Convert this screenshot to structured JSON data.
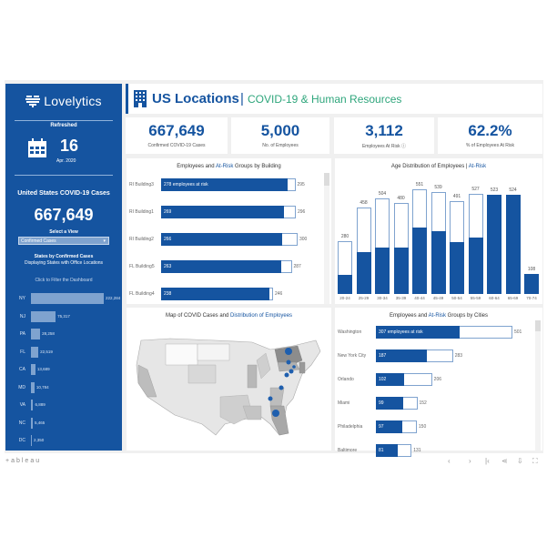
{
  "sidebar": {
    "brand": "Lovelytics",
    "refreshed_label": "Refreshed",
    "refreshed_day": "16",
    "refreshed_month": "Apr. 2020",
    "us_cases_title": "United States COVID-19 Cases",
    "us_cases_value": "667,649",
    "select_view_label": "Select a View",
    "select_view_value": "Confirmed Cases",
    "states_title_1": "States by Confirmed Cases",
    "states_title_2": "Displaying States with Office Locations",
    "click_filter": "Click to Filter the Dashboard",
    "states": [
      {
        "code": "NY",
        "value": 222284,
        "label": "222,284"
      },
      {
        "code": "NJ",
        "value": 75317,
        "label": "75,317"
      },
      {
        "code": "PA",
        "value": 28258,
        "label": "28,258"
      },
      {
        "code": "FL",
        "value": 22519,
        "label": "22,519"
      },
      {
        "code": "CA",
        "value": 13689,
        "label": "13,689"
      },
      {
        "code": "MD",
        "value": 10784,
        "label": "10,784"
      },
      {
        "code": "VA",
        "value": 6889,
        "label": "6,889"
      },
      {
        "code": "NC",
        "value": 5465,
        "label": "5,465"
      },
      {
        "code": "DC",
        "value": 2350,
        "label": "2,350"
      }
    ]
  },
  "header": {
    "title": "US Locations",
    "separator": "|",
    "subtitle": "COVID-19 & Human Resources"
  },
  "kpis": [
    {
      "value": "667,649",
      "label": "Confirmed COVID-19 Cases"
    },
    {
      "value": "5,000",
      "label": "No. of Employees"
    },
    {
      "value": "3,112",
      "label": "Employees At Risk ⓘ"
    },
    {
      "value": "62.2%",
      "label": "% of Employees At Risk"
    }
  ],
  "chart_data": [
    {
      "type": "bar",
      "orientation": "horizontal",
      "title": "Employees and At-Risk Groups by Building",
      "title_highlight": "At-Risk",
      "categories": [
        "RI Building3",
        "RI Building1",
        "RI Building2",
        "FL Building5",
        "FL Building4"
      ],
      "series": [
        {
          "name": "At-Risk",
          "values": [
            278,
            269,
            266,
            263,
            238
          ]
        },
        {
          "name": "Employees",
          "values": [
            295,
            296,
            300,
            287,
            246
          ]
        }
      ],
      "first_label_suffix": " employees at risk",
      "total_labels": [
        "295",
        "296",
        "300",
        "287",
        "246"
      ]
    },
    {
      "type": "bar",
      "orientation": "vertical",
      "title": "Age Distribution of Employees",
      "title_highlight": "At-Risk",
      "categories": [
        "20-24",
        "25-29",
        "30-34",
        "35-39",
        "40-44",
        "45-49",
        "50-54",
        "55-59",
        "60-64",
        "65-69",
        "70-74"
      ],
      "series": [
        {
          "name": "Employees",
          "values": [
            280,
            458,
            504,
            480,
            551,
            539,
            491,
            527,
            523,
            524,
            108
          ]
        },
        {
          "name": "At-Risk",
          "values": [
            100,
            220,
            245,
            245,
            352,
            330,
            272,
            300,
            523,
            524,
            108
          ]
        }
      ],
      "ylim": [
        0,
        600
      ]
    },
    {
      "type": "bar",
      "orientation": "horizontal",
      "title": "Employees and At-Risk Groups by Cities",
      "title_highlight": "At-Risk",
      "categories": [
        "Washington",
        "New York City",
        "Orlando",
        "Miami",
        "Philadelphia",
        "Baltimore"
      ],
      "series": [
        {
          "name": "At-Risk",
          "values": [
            307,
            187,
            102,
            99,
            97,
            81
          ]
        },
        {
          "name": "Employees",
          "values": [
            501,
            283,
            206,
            152,
            150,
            131
          ]
        }
      ],
      "first_label_suffix": " employees at risk",
      "total_labels": [
        "501",
        "283",
        "206",
        "152",
        "150",
        "131"
      ]
    }
  ],
  "map": {
    "title_prefix": "Map of COVID Cases and ",
    "title_highlight": "Distribution of Employees"
  },
  "footer": {
    "brand": "+ableau",
    "buttons": [
      "undo",
      "redo",
      "revert",
      "share",
      "download",
      "fullscreen"
    ]
  },
  "colors": {
    "brand_blue": "#1554a0",
    "light_blue": "#7fa3cf",
    "accent_green": "#2fa67c"
  }
}
